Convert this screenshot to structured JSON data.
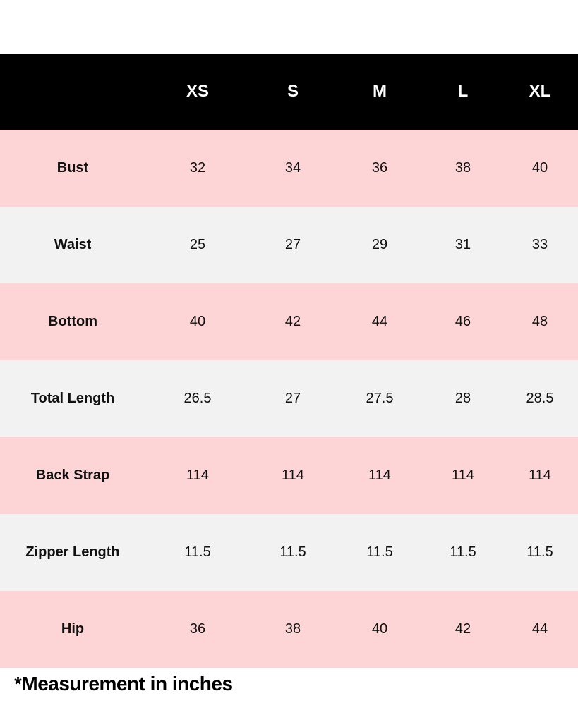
{
  "header": {
    "sizes": [
      "XS",
      "S",
      "M",
      "L",
      "XL"
    ]
  },
  "colors": {
    "header_bg": "#000000",
    "row_pink": "#fdd5d6",
    "row_gray": "#f2f2f2"
  },
  "rows": [
    {
      "label": "Bust",
      "values": [
        "32",
        "34",
        "36",
        "38",
        "40"
      ]
    },
    {
      "label": "Waist",
      "values": [
        "25",
        "27",
        "29",
        "31",
        "33"
      ]
    },
    {
      "label": "Bottom",
      "values": [
        "40",
        "42",
        "44",
        "46",
        "48"
      ]
    },
    {
      "label": "Total Length",
      "values": [
        "26.5",
        "27",
        "27.5",
        "28",
        "28.5"
      ]
    },
    {
      "label": "Back Strap",
      "values": [
        "114",
        "114",
        "114",
        "114",
        "114"
      ]
    },
    {
      "label": "Zipper Length",
      "values": [
        "11.5",
        "11.5",
        "11.5",
        "11.5",
        "11.5"
      ]
    },
    {
      "label": "Hip",
      "values": [
        "36",
        "38",
        "40",
        "42",
        "44"
      ]
    }
  ],
  "footnote": "*Measurement in inches"
}
